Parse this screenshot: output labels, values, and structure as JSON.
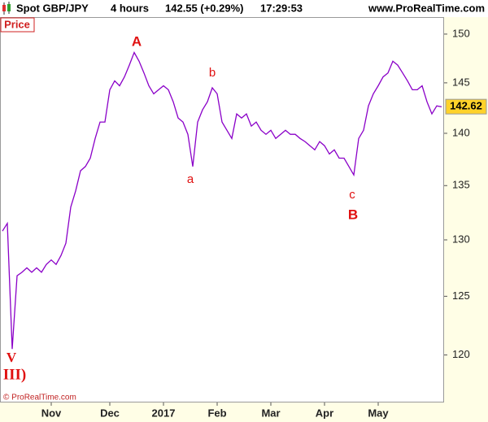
{
  "chart_data": {
    "type": "line",
    "title": "Spot GBP/JPY",
    "interval": "4 hours",
    "quote": "142.55 (+0.29%)",
    "time": "17:29:53",
    "site": "www.ProRealTime.com",
    "panel_label": "Price",
    "copyright": "© ProRealTime.com",
    "last_value": 142.62,
    "yscale": "log",
    "ylim": [
      116.1,
      151.7
    ],
    "yticks": [
      120,
      125,
      130,
      135,
      140,
      145,
      150
    ],
    "categories": [
      null,
      null,
      null,
      null,
      null,
      null,
      null,
      null,
      null,
      null,
      "Nov",
      null,
      null,
      null,
      null,
      null,
      null,
      null,
      null,
      null,
      null,
      null,
      "Dec",
      null,
      null,
      null,
      null,
      null,
      null,
      null,
      null,
      null,
      null,
      "2017",
      null,
      null,
      null,
      null,
      null,
      null,
      null,
      null,
      null,
      null,
      "Feb",
      null,
      null,
      null,
      null,
      null,
      null,
      null,
      null,
      null,
      null,
      "Mar",
      null,
      null,
      null,
      null,
      null,
      null,
      null,
      null,
      null,
      null,
      "Apr",
      null,
      null,
      null,
      null,
      null,
      null,
      null,
      null,
      null,
      null,
      "May",
      null,
      null,
      null,
      null,
      null,
      null,
      null,
      null,
      null,
      null,
      null,
      null,
      null
    ],
    "series": [
      {
        "name": "Price",
        "color": "#8a00c8",
        "values": [
          130.8,
          131.5,
          120.5,
          126.8,
          127.1,
          127.5,
          127.1,
          127.5,
          127.1,
          127.8,
          128.2,
          127.8,
          128.6,
          129.7,
          133.0,
          134.5,
          136.4,
          136.8,
          137.6,
          139.5,
          141.1,
          141.1,
          144.3,
          145.2,
          144.7,
          145.6,
          146.8,
          148.1,
          147.2,
          146.0,
          144.7,
          143.9,
          144.3,
          144.7,
          144.3,
          143.1,
          141.5,
          141.1,
          139.9,
          136.8,
          141.1,
          142.3,
          143.1,
          144.5,
          143.9,
          141.1,
          140.3,
          139.5,
          141.9,
          141.5,
          141.9,
          140.7,
          141.1,
          140.3,
          139.9,
          140.3,
          139.5,
          139.9,
          140.3,
          139.9,
          139.9,
          139.5,
          139.2,
          138.8,
          138.4,
          139.2,
          138.8,
          138.0,
          138.4,
          137.6,
          137.6,
          136.8,
          136.0,
          139.5,
          140.3,
          142.7,
          143.9,
          144.7,
          145.6,
          146.0,
          147.2,
          146.8,
          146.0,
          145.2,
          144.3,
          144.3,
          144.7,
          143.1,
          141.9,
          142.7,
          142.6
        ]
      }
    ],
    "annotations": [
      "A",
      "b",
      "a",
      "c",
      "B",
      "V",
      "III)"
    ]
  }
}
